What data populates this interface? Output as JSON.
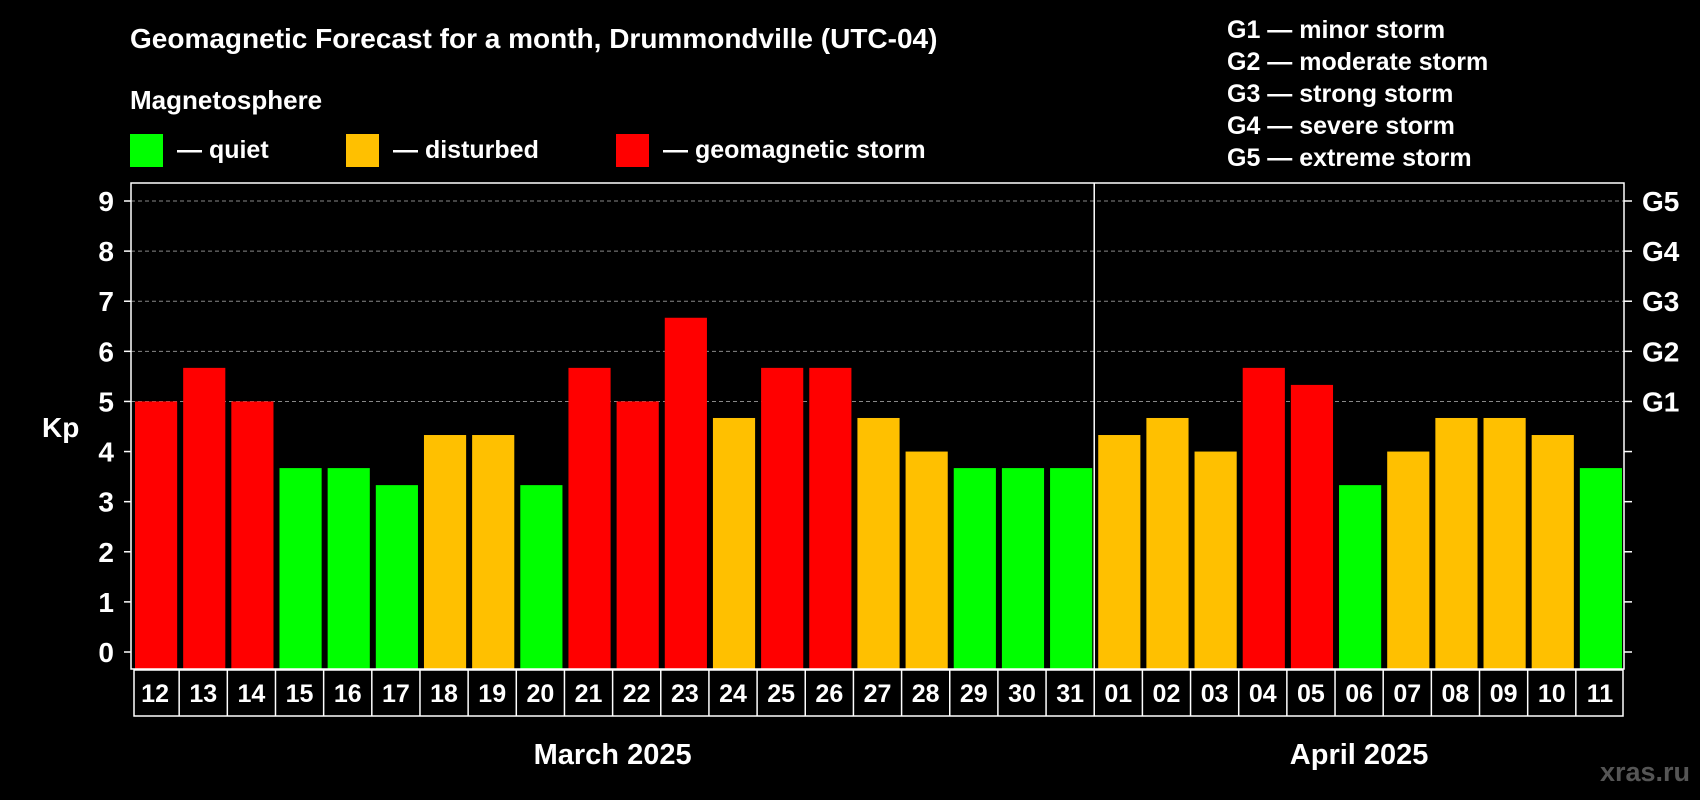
{
  "chart_data": {
    "type": "bar",
    "title": "Geomagnetic Forecast for a month, Drummondville (UTC-04)",
    "legend_title": "Magnetosphere",
    "legend": [
      {
        "label": "— quiet",
        "color": "#00ff00"
      },
      {
        "label": "— disturbed",
        "color": "#ffc000"
      },
      {
        "label": "— geomagnetic storm",
        "color": "#ff0000"
      }
    ],
    "storm_scale": [
      "G1 — minor storm",
      "G2 — moderate storm",
      "G3 — strong storm",
      "G4 — severe storm",
      "G5 — extreme storm"
    ],
    "ylabel": "Kp",
    "ylim": [
      0,
      9
    ],
    "yticks": [
      "0",
      "1",
      "2",
      "3",
      "4",
      "5",
      "6",
      "7",
      "8",
      "9"
    ],
    "right_axis_labels": [
      {
        "kp": 5,
        "label": "G1"
      },
      {
        "kp": 6,
        "label": "G2"
      },
      {
        "kp": 7,
        "label": "G3"
      },
      {
        "kp": 8,
        "label": "G4"
      },
      {
        "kp": 9,
        "label": "G5"
      }
    ],
    "grid": "dashed horizontal lines at Kp 5–9",
    "categories": [
      "12",
      "13",
      "14",
      "15",
      "16",
      "17",
      "18",
      "19",
      "20",
      "21",
      "22",
      "23",
      "24",
      "25",
      "26",
      "27",
      "28",
      "29",
      "30",
      "31",
      "01",
      "02",
      "03",
      "04",
      "05",
      "06",
      "07",
      "08",
      "09",
      "10",
      "11"
    ],
    "values": [
      5.0,
      5.67,
      5.0,
      3.67,
      3.67,
      3.33,
      4.33,
      4.33,
      3.33,
      5.67,
      5.0,
      6.67,
      4.67,
      5.67,
      5.67,
      4.67,
      4.0,
      3.67,
      3.67,
      3.67,
      4.33,
      4.67,
      4.0,
      5.67,
      5.33,
      3.33,
      4.0,
      4.67,
      4.67,
      4.33,
      3.67
    ],
    "bar_colors": [
      "#ff0000",
      "#ff0000",
      "#ff0000",
      "#00ff00",
      "#00ff00",
      "#00ff00",
      "#ffc000",
      "#ffc000",
      "#00ff00",
      "#ff0000",
      "#ff0000",
      "#ff0000",
      "#ffc000",
      "#ff0000",
      "#ff0000",
      "#ffc000",
      "#ffc000",
      "#00ff00",
      "#00ff00",
      "#00ff00",
      "#ffc000",
      "#ffc000",
      "#ffc000",
      "#ff0000",
      "#ff0000",
      "#00ff00",
      "#ffc000",
      "#ffc000",
      "#ffc000",
      "#ffc000",
      "#00ff00"
    ],
    "months": [
      {
        "label": "March 2025",
        "days": 20
      },
      {
        "label": "April 2025",
        "days": 11
      }
    ]
  },
  "watermark": "xras.ru",
  "colors": {
    "background": "#000000",
    "axis": "#ffffff",
    "grid": "#888888"
  }
}
